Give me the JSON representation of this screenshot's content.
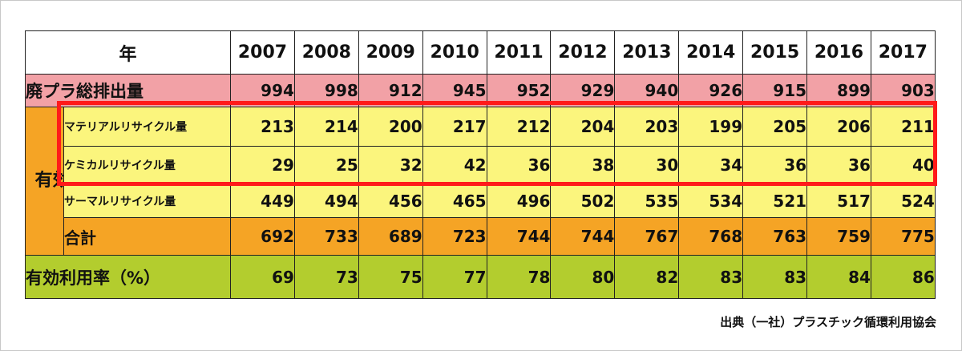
{
  "header": {
    "label": "年",
    "years": [
      "2007",
      "2008",
      "2009",
      "2010",
      "2011",
      "2012",
      "2013",
      "2014",
      "2015",
      "2016",
      "2017"
    ]
  },
  "rows": {
    "total": {
      "label": "廃プラ総排出量",
      "values": [
        "994",
        "998",
        "912",
        "945",
        "952",
        "929",
        "940",
        "926",
        "915",
        "899",
        "903"
      ]
    },
    "effective_group_label": "有効利用量",
    "material": {
      "label": "マテリアルリサイクル量",
      "values": [
        "213",
        "214",
        "200",
        "217",
        "212",
        "204",
        "203",
        "199",
        "205",
        "206",
        "211"
      ]
    },
    "chemical": {
      "label": "ケミカルリサイクル量",
      "values": [
        "29",
        "25",
        "32",
        "42",
        "36",
        "38",
        "30",
        "34",
        "36",
        "36",
        "40"
      ]
    },
    "thermal": {
      "label": "サーマルリサイクル量",
      "values": [
        "449",
        "494",
        "456",
        "465",
        "496",
        "502",
        "535",
        "534",
        "521",
        "517",
        "524"
      ]
    },
    "sum": {
      "label": "合計",
      "values": [
        "692",
        "733",
        "689",
        "723",
        "744",
        "744",
        "767",
        "768",
        "763",
        "759",
        "775"
      ]
    },
    "rate": {
      "label": "有効利用率（%）",
      "values": [
        "69",
        "73",
        "75",
        "77",
        "78",
        "80",
        "82",
        "83",
        "83",
        "84",
        "86"
      ]
    }
  },
  "source": "出典（一社）プラスチック循環利用協会",
  "colors": {
    "total_row": "#f2a1a6",
    "recycle_rows": "#fbf57d",
    "sum_row": "#f5a425",
    "rate_row": "#b3cd2e",
    "highlight_border": "#ff1a1a"
  }
}
